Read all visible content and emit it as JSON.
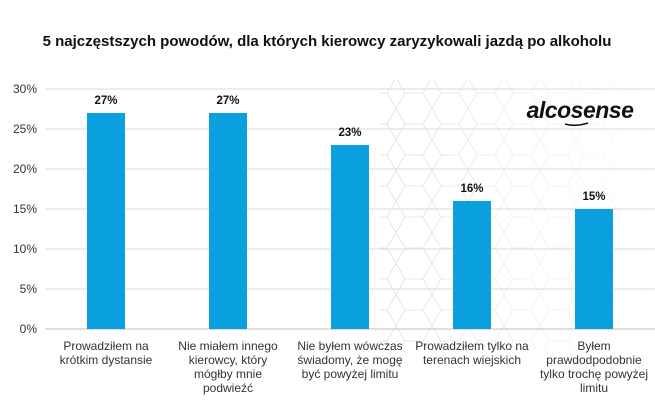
{
  "chart_data": {
    "type": "bar",
    "title": "5 najczęstszych powodów, dla których kierowcy zaryzykowali jazdą po alkoholu",
    "xlabel": "",
    "ylabel": "",
    "categories": [
      [
        "Prowadziłem na",
        "krótkim dystansie"
      ],
      [
        "Nie miałem innego",
        "kierowcy, który",
        "mógłby mnie",
        "podwieźć"
      ],
      [
        "Nie byłem wówczas",
        "świadomy, że mogę",
        "być powyżej limitu"
      ],
      [
        "Prowadziłem tylko na",
        "terenach wiejskich"
      ],
      [
        "Byłem",
        "prawdodpodobnie",
        "tylko trochę powyżej",
        "limitu"
      ]
    ],
    "values": [
      27,
      27,
      23,
      16,
      15
    ],
    "data_labels": [
      "27%",
      "27%",
      "23%",
      "16%",
      "15%"
    ],
    "ylim": [
      0,
      30
    ],
    "yticks": [
      0,
      5,
      10,
      15,
      20,
      25,
      30
    ],
    "ytick_labels": [
      "0%",
      "5%",
      "10%",
      "15%",
      "20%",
      "25%",
      "30%"
    ],
    "bar_color": "#0a9fde",
    "gridlines": true,
    "legend": false
  },
  "logo": {
    "text": "alcosense",
    "icon": "alcosense-logo"
  }
}
